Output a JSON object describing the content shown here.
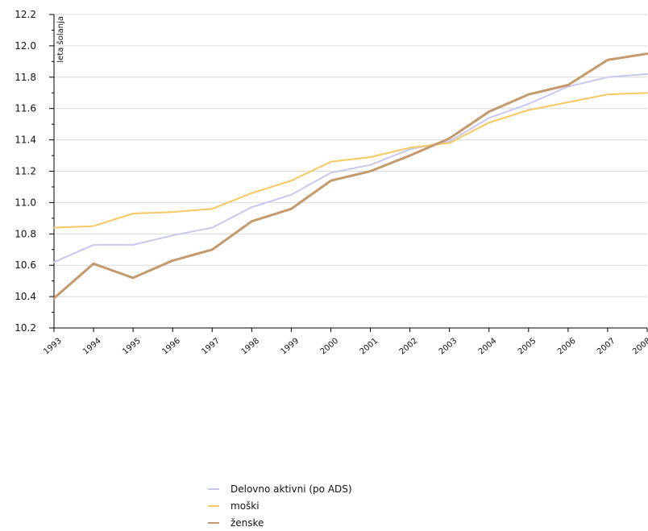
{
  "chart_data": {
    "type": "line",
    "title": "",
    "xlabel": "",
    "ylabel": "leta šolanja",
    "ylim": [
      10.2,
      12.2
    ],
    "yticks": [
      "10.2",
      "10.4",
      "10.6",
      "10.8",
      "11.0",
      "11.2",
      "11.4",
      "11.6",
      "11.8",
      "12.0",
      "12.2"
    ],
    "x": [
      "1993",
      "1994",
      "1995",
      "1996",
      "1997",
      "1998",
      "1999",
      "2000",
      "2001",
      "2002",
      "2003",
      "2004",
      "2005",
      "2006",
      "2007",
      "2008"
    ],
    "grid": true,
    "legend_position": "bottom",
    "series": [
      {
        "name": "Delovno aktivni (po ADS)",
        "color": "#c8c8ef",
        "values": [
          10.62,
          10.73,
          10.73,
          10.79,
          10.84,
          10.97,
          11.05,
          11.19,
          11.24,
          11.34,
          11.39,
          11.54,
          11.63,
          11.74,
          11.8,
          11.82
        ]
      },
      {
        "name": "moški",
        "color": "#f7c860",
        "values": [
          10.84,
          10.85,
          10.93,
          10.94,
          10.96,
          11.06,
          11.14,
          11.26,
          11.29,
          11.35,
          11.38,
          11.51,
          11.59,
          11.64,
          11.69,
          11.7
        ]
      },
      {
        "name": "ženske",
        "color": "#c49a6c",
        "values": [
          10.39,
          10.61,
          10.52,
          10.63,
          10.7,
          10.88,
          10.96,
          11.14,
          11.2,
          11.3,
          11.41,
          11.58,
          11.69,
          11.75,
          11.91,
          11.95
        ]
      }
    ]
  }
}
